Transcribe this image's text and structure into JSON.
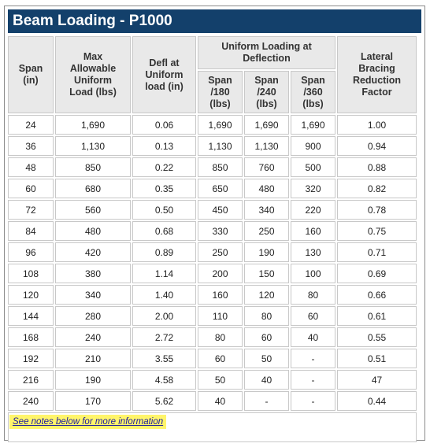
{
  "title": "Beam Loading - P1000",
  "headers": {
    "span": "Span (in)",
    "max_load": "Max Allowable Uniform Load (lbs)",
    "defl": "Defl at Uniform load (in)",
    "uniform_group": "Uniform Loading at Deflection",
    "span180": "Span /180 (lbs)",
    "span240": "Span /240 (lbs)",
    "span360": "Span /360 (lbs)",
    "bracing": "Lateral Bracing Reduction Factor"
  },
  "rows": [
    [
      "24",
      "1,690",
      "0.06",
      "1,690",
      "1,690",
      "1,690",
      "1.00"
    ],
    [
      "36",
      "1,130",
      "0.13",
      "1,130",
      "1,130",
      "900",
      "0.94"
    ],
    [
      "48",
      "850",
      "0.22",
      "850",
      "760",
      "500",
      "0.88"
    ],
    [
      "60",
      "680",
      "0.35",
      "650",
      "480",
      "320",
      "0.82"
    ],
    [
      "72",
      "560",
      "0.50",
      "450",
      "340",
      "220",
      "0.78"
    ],
    [
      "84",
      "480",
      "0.68",
      "330",
      "250",
      "160",
      "0.75"
    ],
    [
      "96",
      "420",
      "0.89",
      "250",
      "190",
      "130",
      "0.71"
    ],
    [
      "108",
      "380",
      "1.14",
      "200",
      "150",
      "100",
      "0.69"
    ],
    [
      "120",
      "340",
      "1.40",
      "160",
      "120",
      "80",
      "0.66"
    ],
    [
      "144",
      "280",
      "2.00",
      "110",
      "80",
      "60",
      "0.61"
    ],
    [
      "168",
      "240",
      "2.72",
      "80",
      "60",
      "40",
      "0.55"
    ],
    [
      "192",
      "210",
      "3.55",
      "60",
      "50",
      "-",
      "0.51"
    ],
    [
      "216",
      "190",
      "4.58",
      "50",
      "40",
      "-",
      "47"
    ],
    [
      "240",
      "170",
      "5.62",
      "40",
      "-",
      "-",
      "0.44"
    ]
  ],
  "note_link": "See notes below for more information",
  "colors": {
    "title_bg": "#13406b",
    "header_bg": "#e9e9e9",
    "highlight": "#fff56a"
  }
}
